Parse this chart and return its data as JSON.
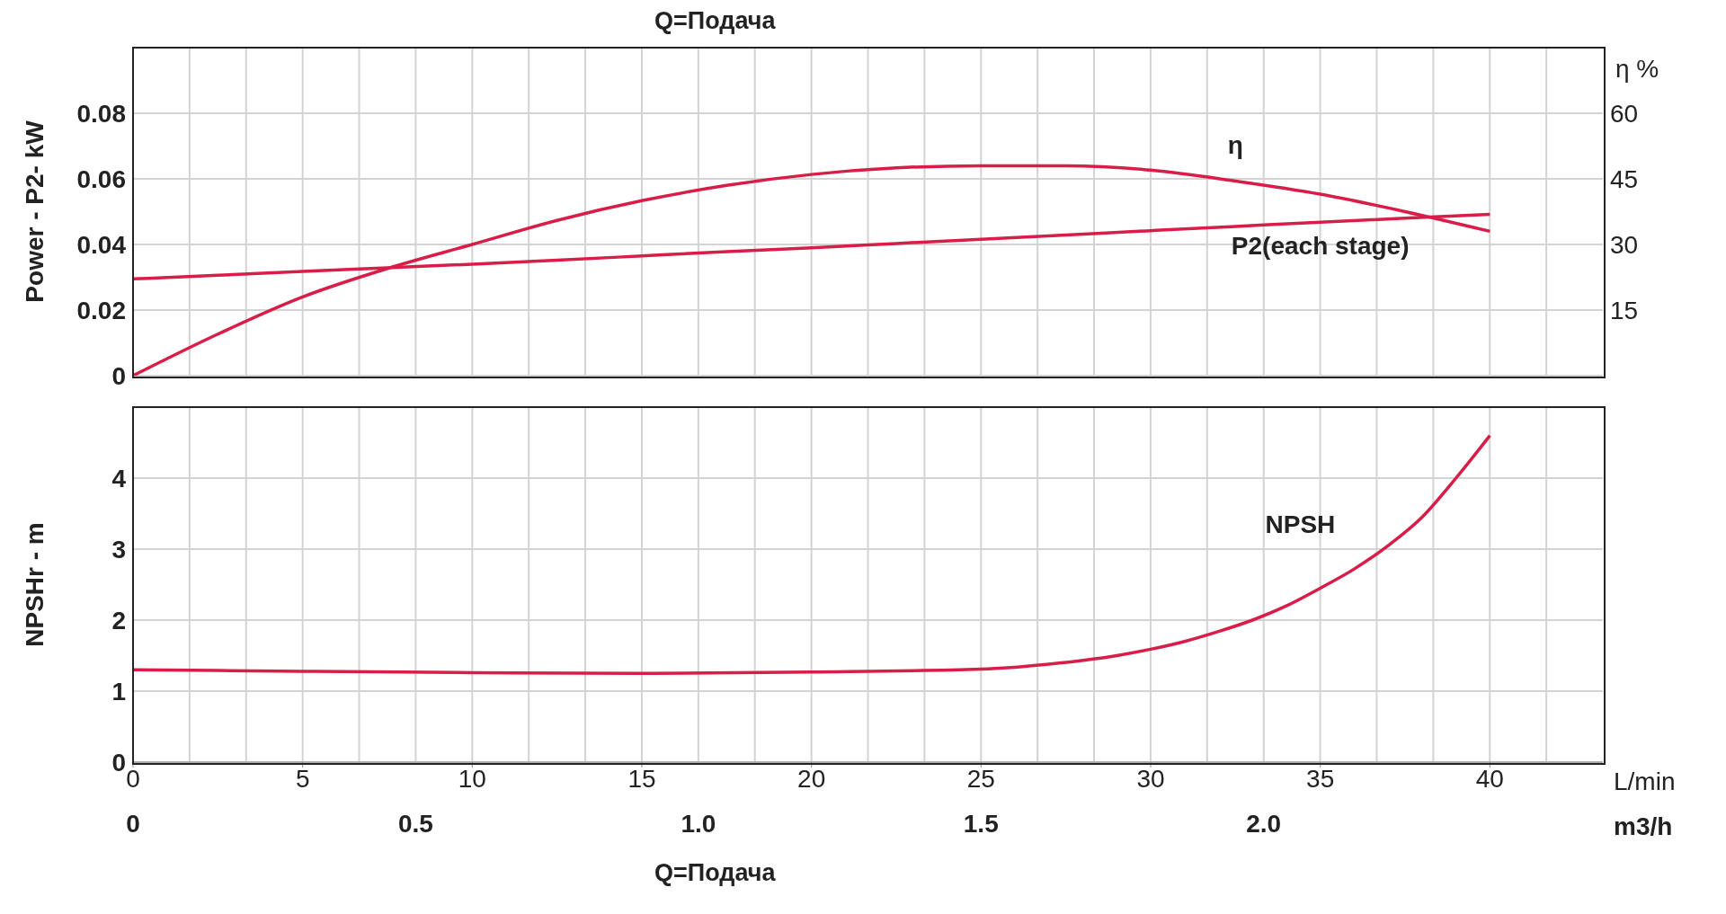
{
  "chart_data": [
    {
      "type": "line",
      "title": "Q=Подача",
      "ylabel": "Power - P2- kW",
      "y2label": "η %",
      "x": [
        0,
        2.5,
        5,
        7.5,
        10,
        12.5,
        15,
        17.5,
        20,
        22.5,
        25,
        27.5,
        30,
        32.5,
        35,
        37.5,
        40
      ],
      "series": [
        {
          "name": "η",
          "color": "#d81e48",
          "axis": "y2",
          "values": [
            0,
            9.5,
            18,
            24.5,
            30,
            35.5,
            40,
            43.5,
            46,
            47.5,
            48,
            48,
            47,
            44.5,
            41.5,
            37.5,
            33
          ]
        },
        {
          "name": "P2(each stage)",
          "color": "#d81e48",
          "values": [
            0.0295,
            0.0306,
            0.0318,
            0.0329,
            0.034,
            0.0352,
            0.0365,
            0.0378,
            0.039,
            0.0403,
            0.0416,
            0.0429,
            0.0442,
            0.0455,
            0.0468,
            0.048,
            0.0492
          ]
        }
      ],
      "xlim": [
        0,
        43.33
      ],
      "ylim": [
        0,
        0.1
      ],
      "yticks": [
        0,
        0.02,
        0.04,
        0.06,
        0.08
      ],
      "y2lim": [
        0,
        75
      ],
      "y2ticks": [
        15,
        30,
        45,
        60
      ],
      "tick_labels": "y",
      "grid": true,
      "legend": false
    },
    {
      "type": "line",
      "ylabel": "NPSHr - m",
      "xlabel": "L/min",
      "x2label": "m3/h",
      "annotations": [
        "Q=Подача"
      ],
      "x": [
        0,
        5,
        10,
        15,
        20,
        25,
        27,
        29,
        30,
        31,
        32,
        33,
        34,
        35,
        36,
        37,
        38,
        39,
        40
      ],
      "series": [
        {
          "name": "NPSH",
          "color": "#d81e48",
          "values": [
            1.3,
            1.28,
            1.26,
            1.25,
            1.27,
            1.31,
            1.38,
            1.5,
            1.59,
            1.7,
            1.84,
            2.0,
            2.2,
            2.45,
            2.72,
            3.05,
            3.45,
            4.0,
            4.6
          ]
        }
      ],
      "xlim": [
        0,
        43.33
      ],
      "xticks": [
        0,
        5,
        10,
        15,
        20,
        25,
        30,
        35,
        40
      ],
      "x2lim": [
        0,
        2.6
      ],
      "x2ticks": [
        0,
        {
          "value": 0.1,
          "label": null
        },
        {
          "value": 0.2,
          "label": null
        },
        {
          "value": 0.3,
          "label": null
        },
        {
          "value": 0.4,
          "label": null
        },
        {
          "value": 0.5,
          "label": "0.5"
        },
        {
          "value": 0.6,
          "label": null
        },
        {
          "value": 0.7,
          "label": null
        },
        {
          "value": 0.8,
          "label": null
        },
        {
          "value": 0.9,
          "label": null
        },
        {
          "value": 1.0,
          "label": "1.0"
        },
        {
          "value": 1.1,
          "label": null
        },
        {
          "value": 1.2,
          "label": null
        },
        {
          "value": 1.3,
          "label": null
        },
        {
          "value": 1.4,
          "label": null
        },
        {
          "value": 1.5,
          "label": "1.5"
        },
        {
          "value": 1.6,
          "label": null
        },
        {
          "value": 1.7,
          "label": null
        },
        {
          "value": 1.8,
          "label": null
        },
        {
          "value": 1.9,
          "label": null
        },
        {
          "value": 2.0,
          "label": "2.0"
        },
        {
          "value": 2.1,
          "label": null
        },
        {
          "value": 2.2,
          "label": null
        },
        {
          "value": 2.3,
          "label": null
        },
        {
          "value": 2.4,
          "label": null
        },
        {
          "value": 2.5,
          "label": null
        }
      ],
      "ylim": [
        0,
        5
      ],
      "yticks": [
        0,
        1,
        2,
        3,
        4
      ],
      "grid": true,
      "legend": false
    }
  ]
}
